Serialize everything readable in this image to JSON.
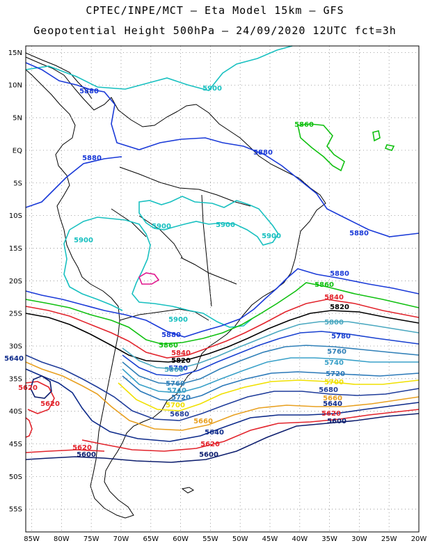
{
  "header": {
    "line1": "CPTEC/INPE/MCT –  Eta Model 15km – GFS",
    "line2": "Geopotential Height 500hPa – 24/09/2020 12UTC fct=3h"
  },
  "map": {
    "lon_range": [
      -86,
      -20
    ],
    "lat_range": [
      -58.5,
      16
    ],
    "lat_ticks": [
      "15N",
      "10N",
      "5N",
      "EQ",
      "5S",
      "10S",
      "15S",
      "20S",
      "25S",
      "30S",
      "35S",
      "40S",
      "45S",
      "50S",
      "55S"
    ],
    "lon_ticks": [
      "85W",
      "80W",
      "75W",
      "70W",
      "65W",
      "60W",
      "55W",
      "50W",
      "45W",
      "40W",
      "35W",
      "30W",
      "25W",
      "20W"
    ],
    "grid": "dotted"
  },
  "contour_colors": {
    "5600": "#0d1e6e",
    "5620": "#e2242c",
    "5640": "#0d2a8a",
    "5660": "#e8a020",
    "5680": "#1f3c9a",
    "5700": "#f0e000",
    "5720": "#2a78b8",
    "5740": "#38a0c8",
    "5760": "#3080b8",
    "5780": "#1840d0",
    "5800": "#4aa8c0",
    "5820": "#000000",
    "5840": "#e2242c",
    "5860": "#10c010",
    "5880": "#1a3ad8",
    "5900": "#18c0c0",
    "5920": "#e0148c"
  },
  "contour_labels": [
    {
      "text": "5880",
      "level": "5880"
    },
    {
      "text": "5900",
      "level": "5900"
    },
    {
      "text": "5860",
      "level": "5860"
    },
    {
      "text": "5880",
      "level": "5880"
    },
    {
      "text": "5880",
      "level": "5880"
    },
    {
      "text": "5900",
      "level": "5900"
    },
    {
      "text": "5900",
      "level": "5900"
    },
    {
      "text": "5900",
      "level": "5900"
    },
    {
      "text": "5900",
      "level": "5900"
    },
    {
      "text": "5880",
      "level": "5880"
    },
    {
      "text": "5880",
      "level": "5880"
    },
    {
      "text": "5860",
      "level": "5860"
    },
    {
      "text": "5840",
      "level": "5840"
    },
    {
      "text": "5820",
      "level": "5820"
    },
    {
      "text": "5800",
      "level": "5800"
    },
    {
      "text": "5780",
      "level": "5780"
    },
    {
      "text": "5760",
      "level": "5760"
    },
    {
      "text": "5740",
      "level": "5740"
    },
    {
      "text": "5720",
      "level": "5720"
    },
    {
      "text": "5700",
      "level": "5700"
    },
    {
      "text": "5680",
      "level": "5680"
    },
    {
      "text": "5660",
      "level": "5660"
    },
    {
      "text": "5640",
      "level": "5640"
    },
    {
      "text": "5620",
      "level": "5620"
    },
    {
      "text": "5600",
      "level": "5600"
    },
    {
      "text": "5900",
      "level": "5900"
    },
    {
      "text": "5880",
      "level": "5880"
    },
    {
      "text": "5860",
      "level": "5860"
    },
    {
      "text": "5840",
      "level": "5840"
    },
    {
      "text": "5820",
      "level": "5820"
    },
    {
      "text": "5780",
      "level": "5780"
    },
    {
      "text": "5800",
      "level": "5800"
    },
    {
      "text": "5760",
      "level": "5760"
    },
    {
      "text": "5740",
      "level": "5740"
    },
    {
      "text": "5720",
      "level": "5720"
    },
    {
      "text": "5700",
      "level": "5700"
    },
    {
      "text": "5680",
      "level": "5680"
    },
    {
      "text": "5660",
      "level": "5660"
    },
    {
      "text": "5640",
      "level": "5640"
    },
    {
      "text": "5620",
      "level": "5620"
    },
    {
      "text": "5600",
      "level": "5600"
    },
    {
      "text": "5640",
      "level": "5640"
    },
    {
      "text": "5620",
      "level": "5620"
    },
    {
      "text": "5620",
      "level": "5620"
    },
    {
      "text": "5600",
      "level": "5600"
    },
    {
      "text": "5620",
      "level": "5620"
    },
    {
      "text": "5600",
      "level": "5600"
    }
  ]
}
